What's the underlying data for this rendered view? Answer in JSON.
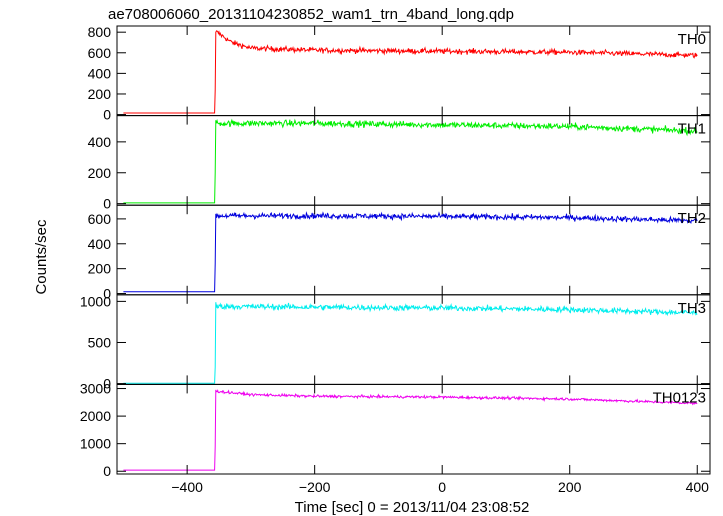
{
  "chart_data": {
    "type": "line",
    "title": "ae708006060_20131104230852_wam1_trn_4band_long.qdp",
    "xlabel": "Time [sec] 0 = 2013/11/04 23:08:52",
    "ylabel": "Counts/sec",
    "xlim": [
      -510,
      420
    ],
    "x_ticks": [
      -400,
      -200,
      0,
      200,
      400
    ],
    "x_tick_labels": [
      "−400",
      "−200",
      "0",
      "200",
      "400"
    ],
    "grid": false,
    "trigger_time": -355,
    "panels": [
      {
        "name": "TH0",
        "color": "#ff0000",
        "ylim": [
          -10,
          860
        ],
        "y_ticks": [
          0,
          200,
          400,
          600,
          800
        ],
        "y_tick_labels": [
          "0",
          "200",
          "400",
          "600",
          "800"
        ],
        "pre_level": 15,
        "rise_partial": 240,
        "peak": 800,
        "post_points": [
          [
            -353,
            800
          ],
          [
            -330,
            700
          ],
          [
            -300,
            645
          ],
          [
            -200,
            625
          ],
          [
            0,
            615
          ],
          [
            200,
            605
          ],
          [
            400,
            575
          ]
        ],
        "noise": 25
      },
      {
        "name": "TH1",
        "color": "#00ee00",
        "ylim": [
          -10,
          570
        ],
        "y_ticks": [
          0,
          200,
          400
        ],
        "y_tick_labels": [
          "0",
          "200",
          "400"
        ],
        "pre_level": 5,
        "rise_partial": 200,
        "peak": 540,
        "post_points": [
          [
            -353,
            520
          ],
          [
            -200,
            520
          ],
          [
            0,
            510
          ],
          [
            200,
            500
          ],
          [
            400,
            470
          ]
        ],
        "noise": 20
      },
      {
        "name": "TH2",
        "color": "#0000dd",
        "ylim": [
          -10,
          710
        ],
        "y_ticks": [
          0,
          200,
          400,
          600
        ],
        "y_tick_labels": [
          "0",
          "200",
          "400",
          "600"
        ],
        "pre_level": 15,
        "rise_partial": 240,
        "peak": 640,
        "post_points": [
          [
            -353,
            625
          ],
          [
            -200,
            625
          ],
          [
            0,
            620
          ],
          [
            200,
            610
          ],
          [
            400,
            585
          ]
        ],
        "noise": 22
      },
      {
        "name": "TH3",
        "color": "#00eeee",
        "ylim": [
          -10,
          1080
        ],
        "y_ticks": [
          0,
          500,
          1000
        ],
        "y_tick_labels": [
          "0",
          "500",
          "1000"
        ],
        "pre_level": 5,
        "rise_partial": 200,
        "peak": 990,
        "post_points": [
          [
            -353,
            940
          ],
          [
            -200,
            930
          ],
          [
            0,
            920
          ],
          [
            200,
            900
          ],
          [
            400,
            860
          ]
        ],
        "noise": 35
      },
      {
        "name": "TH0123",
        "color": "#ee00ee",
        "ylim": [
          -100,
          3150
        ],
        "y_ticks": [
          0,
          1000,
          2000,
          3000
        ],
        "y_tick_labels": [
          "0",
          "1000",
          "2000",
          "3000"
        ],
        "pre_level": 40,
        "rise_partial": 900,
        "peak": 2950,
        "post_points": [
          [
            -353,
            2900
          ],
          [
            -300,
            2780
          ],
          [
            -200,
            2720
          ],
          [
            0,
            2690
          ],
          [
            200,
            2620
          ],
          [
            400,
            2460
          ]
        ],
        "noise": 45
      }
    ]
  }
}
